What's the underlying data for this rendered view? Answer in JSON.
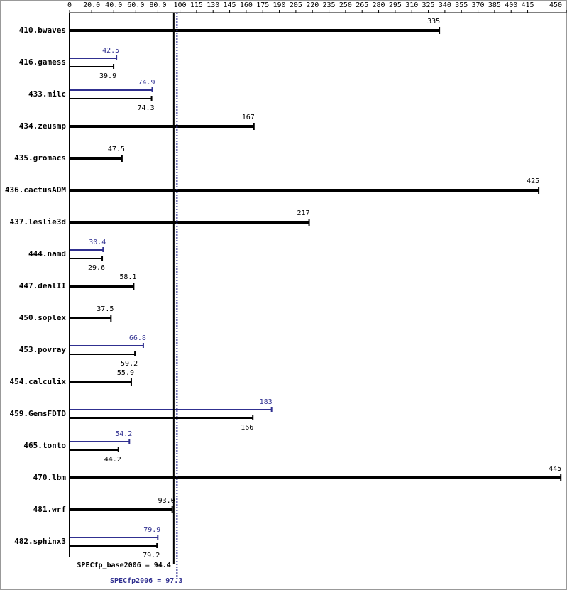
{
  "chart_data": {
    "type": "hbar",
    "categories": [
      "410.bwaves",
      "416.gamess",
      "433.milc",
      "434.zeusmp",
      "435.gromacs",
      "436.cactusADM",
      "437.leslie3d",
      "444.namd",
      "447.dealII",
      "450.soplex",
      "453.povray",
      "454.calculix",
      "459.GemsFDTD",
      "465.tonto",
      "470.lbm",
      "481.wrf",
      "482.sphinx3"
    ],
    "series": [
      {
        "color": "#000000",
        "values": [
          335,
          39.9,
          74.3,
          167,
          47.5,
          425,
          217,
          29.6,
          58.1,
          37.5,
          59.2,
          55.9,
          166,
          44.2,
          445,
          93.0,
          79.2
        ],
        "value_labels": [
          "335",
          "39.9",
          "74.3",
          "167",
          "47.5",
          "425",
          "217",
          "29.6",
          "58.1",
          "37.5",
          "59.2",
          "55.9",
          "166",
          "44.2",
          "445",
          "93.0",
          "79.2"
        ]
      },
      {
        "color": "#303090",
        "values": [
          null,
          42.5,
          74.9,
          null,
          null,
          null,
          null,
          30.4,
          null,
          null,
          66.8,
          null,
          183,
          54.2,
          null,
          null,
          79.9
        ],
        "value_labels": [
          null,
          "42.5",
          "74.9",
          null,
          null,
          null,
          null,
          "30.4",
          null,
          null,
          "66.8",
          null,
          "183",
          "54.2",
          null,
          null,
          "79.9"
        ]
      }
    ],
    "xlim": [
      0,
      450
    ],
    "xticks": [
      0,
      {
        "value": 20,
        "label": "20.0"
      },
      {
        "value": 40,
        "label": "40.0"
      },
      {
        "value": 60,
        "label": "60.0"
      },
      {
        "value": 80,
        "label": "80.0"
      },
      100,
      115,
      130,
      145,
      160,
      175,
      190,
      205,
      220,
      235,
      250,
      265,
      280,
      295,
      310,
      325,
      340,
      355,
      370,
      385,
      400,
      415,
      450
    ],
    "reference_lines": [
      {
        "label": "SPECfp_base2006 = 94.4",
        "value": 94.4,
        "color": "#000000",
        "style": "solid"
      },
      {
        "label": "SPECfp2006 = 97.3",
        "value": 97.3,
        "color": "#303090",
        "style": "dotted"
      }
    ]
  }
}
